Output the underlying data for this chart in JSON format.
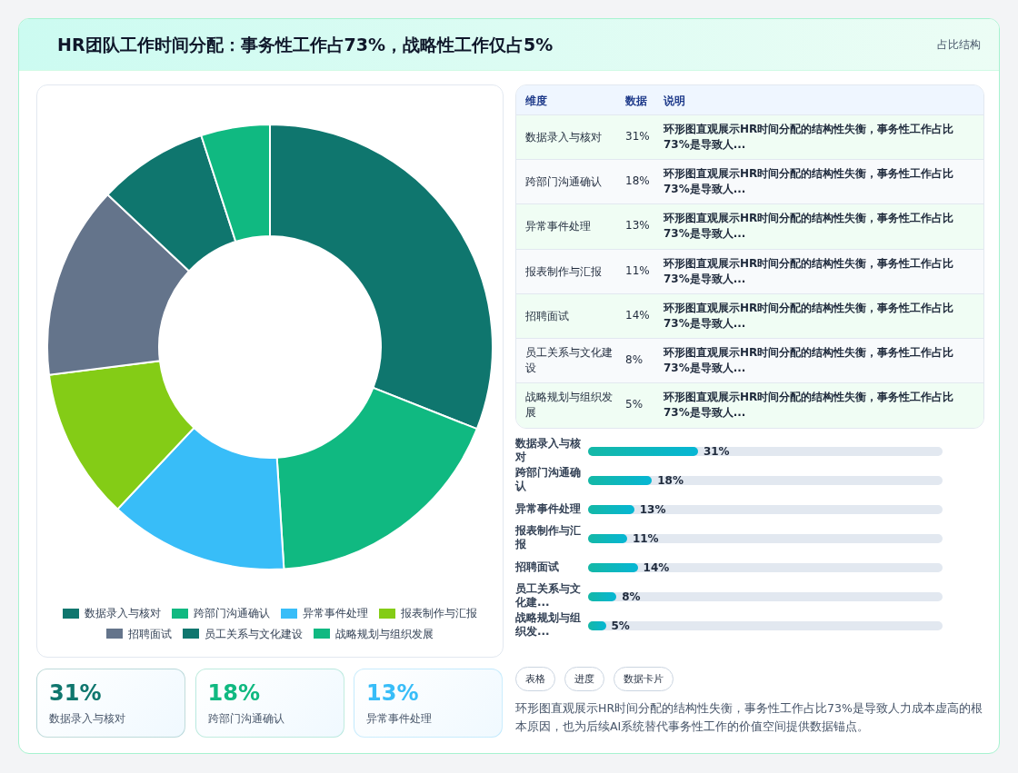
{
  "chart_data": [
    {
      "type": "other",
      "title": "HR团队工作时间分配：事务性工作占73%，战略性工作仅占5%",
      "subtitle": "占比结构"
    },
    {
      "type": "donut",
      "categories": [
        "数据录入与核对",
        "跨部门沟通确认",
        "异常事件处理",
        "报表制作与汇报",
        "招聘面试",
        "员工关系与文化建设",
        "战略规划与组织发展"
      ],
      "values": [
        31,
        18,
        13,
        11,
        14,
        8,
        5
      ],
      "colors": [
        "#0f766e",
        "#10b981",
        "#38bdf8",
        "#84cc16",
        "#64748b",
        "#0f766e",
        "#10b981"
      ],
      "legend": "bottom"
    },
    {
      "type": "other",
      "categories": [
        "数据录入与核对",
        "跨部门沟通确认",
        "异常事件处理",
        "报表制作与汇报",
        "招聘面试",
        "员工关系与文化建设",
        "战略规划与组织发展"
      ],
      "value_labels": [
        "31%",
        "18%",
        "13%",
        "11%",
        "14%",
        "8%",
        "5%"
      ],
      "annotations": [
        "维度",
        "数据",
        "说明",
        "环形图直观展示HR时间分配的结构性失衡，事务性工作占比73%是导致人...",
        "环形图直观展示HR时间分配的结构性失衡，事务性工作占比73%是导致人...",
        "环形图直观展示HR时间分配的结构性失衡，事务性工作占比73%是导致人...",
        "环形图直观展示HR时间分配的结构性失衡，事务性工作占比73%是导致人...",
        "环形图直观展示HR时间分配的结构性失衡，事务性工作占比73%是导致人...",
        "环形图直观展示HR时间分配的结构性失衡，事务性工作占比73%是导致人...",
        "环形图直观展示HR时间分配的结构性失衡，事务性工作占比73%是导致人..."
      ]
    },
    {
      "type": "bar",
      "orientation": "horizontal",
      "categories": [
        "数据录入与核对",
        "跨部门沟通确认",
        "异常事件处理",
        "报表制作与汇报",
        "招聘面试",
        "员工关系与文化建...",
        "战略规划与组织发..."
      ],
      "values": [
        31,
        18,
        13,
        11,
        14,
        8,
        5
      ],
      "value_labels": [
        "31%",
        "18%",
        "13%",
        "11%",
        "14%",
        "8%",
        "5%"
      ],
      "color": "#14b8a6"
    },
    {
      "type": "other",
      "categories": [
        "数据录入与核对",
        "跨部门沟通确认",
        "异常事件处理"
      ],
      "value_labels": [
        "31%",
        "18%",
        "13%"
      ],
      "colors": [
        "#0f766e",
        "#10b981",
        "#38bdf8"
      ]
    },
    {
      "type": "other",
      "categories": [
        "表格",
        "进度",
        "数据卡片"
      ],
      "annotations": [
        "环形图直观展示HR时间分配的结构性失衡，事务性工作占比73%是导致人力成本虚高的根本原因，也为后续AI系统替代事务性工作的价值空间提供数据锚点。"
      ]
    }
  ]
}
